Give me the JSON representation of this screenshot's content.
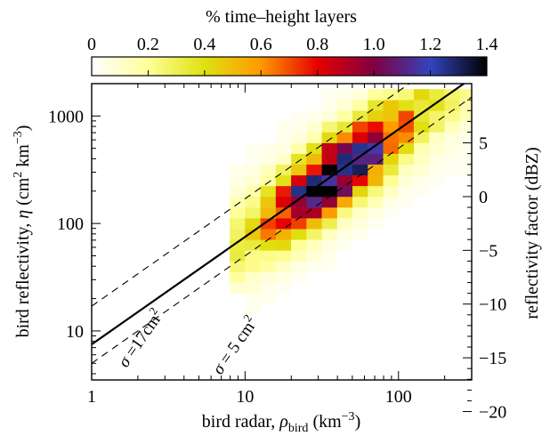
{
  "chart_data": {
    "type": "heatmap",
    "colorbar": {
      "title": "% time–height layers",
      "range": [
        0,
        1.4
      ],
      "ticks": [
        "0",
        "0.2",
        "0.4",
        "0.6",
        "0.8",
        "1.0",
        "1.2",
        "1.4"
      ],
      "colormap": [
        "#ffffff",
        "#ffff99",
        "#e0e010",
        "#ff9900",
        "#e60000",
        "#800040",
        "#3344bb",
        "#000000"
      ]
    },
    "x_axis": {
      "label_prefix": "bird radar, ",
      "label_rho": "ρ",
      "label_sub": "bird",
      "label_units": " (km",
      "label_sup": "−3",
      "label_close": ")",
      "scale": "log",
      "range": [
        1,
        300
      ],
      "ticks": [
        "1",
        "10",
        "100"
      ]
    },
    "y_axis": {
      "label_prefix": "bird reflectivity, ",
      "label_eta": "η",
      "label_units": " (cm",
      "label_sup1": "2",
      "label_mid": " km",
      "label_sup2": "−3",
      "label_close": ")",
      "scale": "log",
      "range": [
        3.5,
        2000
      ],
      "ticks": [
        "10",
        "100",
        "1000"
      ]
    },
    "y2_axis": {
      "label": "reflectivity factor (dBZ)",
      "ticks": [
        "5",
        "0",
        "−5",
        "−10",
        "−15",
        "−20"
      ],
      "values": [
        5,
        0,
        -5,
        -10,
        -15,
        -20
      ]
    },
    "lines": [
      {
        "sigma": 7.5,
        "style": "solid"
      },
      {
        "sigma": 17,
        "style": "dashed",
        "label_sigma": "σ",
        "label_value": " =17cm",
        "label_sup": "2"
      },
      {
        "sigma": 5,
        "style": "dashed",
        "label_sigma": "σ",
        "label_value": " = 5 cm",
        "label_sup": "2"
      }
    ],
    "cells_x_edges_log": [
      0.9,
      1.0,
      1.1,
      1.2,
      1.3,
      1.4,
      1.5,
      1.6,
      1.7,
      1.8,
      1.9,
      2.0,
      2.1,
      2.2,
      2.3,
      2.4,
      2.5
    ],
    "cells_y_edges_log": [
      0.55,
      0.65,
      0.75,
      0.85,
      0.95,
      1.05,
      1.15,
      1.25,
      1.35,
      1.45,
      1.55,
      1.65,
      1.75,
      1.85,
      1.95,
      2.05,
      2.15,
      2.25,
      2.35,
      2.45,
      2.55,
      2.65,
      2.75,
      2.85,
      2.95,
      3.05,
      3.15,
      3.25
    ],
    "grid": false,
    "legend": "none"
  }
}
